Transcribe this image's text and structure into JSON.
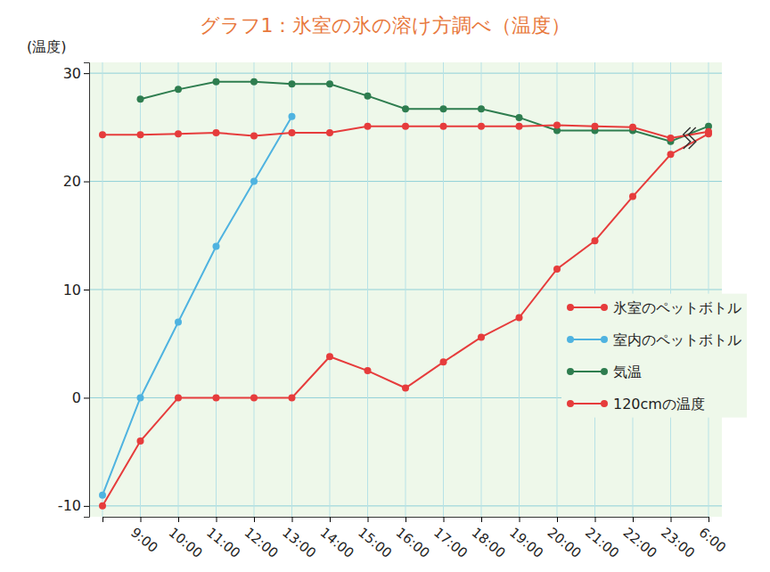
{
  "chart_data": {
    "type": "line",
    "title": "グラフ1：氷室の氷の溶け方調べ（温度）",
    "y_label": "(温度)",
    "categories": [
      null,
      "9:00",
      "10:00",
      "11:00",
      "12:00",
      "13:00",
      "14:00",
      "15:00",
      "16:00",
      "17:00",
      "18:00",
      "19:00",
      "20:00",
      "21:00",
      "22:00",
      "23:00",
      "6:00"
    ],
    "series": [
      {
        "name": "氷室のペットボトル",
        "color": "#e63c3c",
        "values": [
          -10,
          -4,
          0,
          0,
          0,
          0,
          3.8,
          2.5,
          0.9,
          3.3,
          5.6,
          7.4,
          11.9,
          14.5,
          18.6,
          22.5,
          24.4
        ]
      },
      {
        "name": "室内のペットボトル",
        "color": "#4fb3e0",
        "values": [
          -9,
          0,
          7,
          14,
          20,
          26,
          null,
          null,
          null,
          null,
          null,
          null,
          null,
          null,
          null,
          null,
          null
        ]
      },
      {
        "name": "気温",
        "color": "#2e7d4f",
        "values": [
          null,
          27.6,
          28.5,
          29.2,
          29.2,
          29.0,
          29.0,
          27.9,
          26.7,
          26.7,
          26.7,
          25.9,
          24.7,
          24.7,
          24.7,
          23.7,
          25.1
        ]
      },
      {
        "name": "120cmの温度",
        "color": "#e63c3c",
        "values": [
          24.3,
          24.3,
          24.4,
          24.5,
          24.2,
          24.5,
          24.5,
          25.1,
          25.1,
          25.1,
          25.1,
          25.1,
          25.2,
          25.1,
          25.0,
          24.0,
          24.6
        ]
      }
    ],
    "ylim": [
      -11,
      31
    ],
    "yticks": [
      -10,
      0,
      10,
      20,
      30
    ],
    "grid": true,
    "legend": "right",
    "marker": "circle",
    "line_style": "solid"
  }
}
